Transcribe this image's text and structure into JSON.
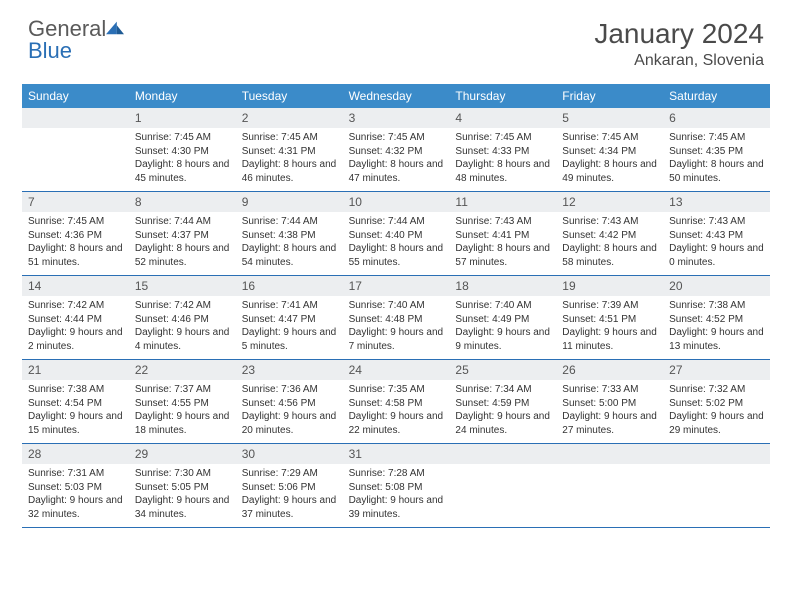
{
  "logo": {
    "word1": "General",
    "word2": "Blue"
  },
  "title": "January 2024",
  "location": "Ankaran, Slovenia",
  "colors": {
    "header_bar": "#3b8bc9",
    "week_border": "#2a6fb5",
    "daynum_bg": "#eceef0",
    "text": "#333333",
    "logo_gray": "#5a5a5a",
    "logo_blue": "#2a6fb5"
  },
  "day_names": [
    "Sunday",
    "Monday",
    "Tuesday",
    "Wednesday",
    "Thursday",
    "Friday",
    "Saturday"
  ],
  "weeks": [
    [
      {
        "n": "",
        "sunrise": "",
        "sunset": "",
        "daylight": ""
      },
      {
        "n": "1",
        "sunrise": "Sunrise: 7:45 AM",
        "sunset": "Sunset: 4:30 PM",
        "daylight": "Daylight: 8 hours and 45 minutes."
      },
      {
        "n": "2",
        "sunrise": "Sunrise: 7:45 AM",
        "sunset": "Sunset: 4:31 PM",
        "daylight": "Daylight: 8 hours and 46 minutes."
      },
      {
        "n": "3",
        "sunrise": "Sunrise: 7:45 AM",
        "sunset": "Sunset: 4:32 PM",
        "daylight": "Daylight: 8 hours and 47 minutes."
      },
      {
        "n": "4",
        "sunrise": "Sunrise: 7:45 AM",
        "sunset": "Sunset: 4:33 PM",
        "daylight": "Daylight: 8 hours and 48 minutes."
      },
      {
        "n": "5",
        "sunrise": "Sunrise: 7:45 AM",
        "sunset": "Sunset: 4:34 PM",
        "daylight": "Daylight: 8 hours and 49 minutes."
      },
      {
        "n": "6",
        "sunrise": "Sunrise: 7:45 AM",
        "sunset": "Sunset: 4:35 PM",
        "daylight": "Daylight: 8 hours and 50 minutes."
      }
    ],
    [
      {
        "n": "7",
        "sunrise": "Sunrise: 7:45 AM",
        "sunset": "Sunset: 4:36 PM",
        "daylight": "Daylight: 8 hours and 51 minutes."
      },
      {
        "n": "8",
        "sunrise": "Sunrise: 7:44 AM",
        "sunset": "Sunset: 4:37 PM",
        "daylight": "Daylight: 8 hours and 52 minutes."
      },
      {
        "n": "9",
        "sunrise": "Sunrise: 7:44 AM",
        "sunset": "Sunset: 4:38 PM",
        "daylight": "Daylight: 8 hours and 54 minutes."
      },
      {
        "n": "10",
        "sunrise": "Sunrise: 7:44 AM",
        "sunset": "Sunset: 4:40 PM",
        "daylight": "Daylight: 8 hours and 55 minutes."
      },
      {
        "n": "11",
        "sunrise": "Sunrise: 7:43 AM",
        "sunset": "Sunset: 4:41 PM",
        "daylight": "Daylight: 8 hours and 57 minutes."
      },
      {
        "n": "12",
        "sunrise": "Sunrise: 7:43 AM",
        "sunset": "Sunset: 4:42 PM",
        "daylight": "Daylight: 8 hours and 58 minutes."
      },
      {
        "n": "13",
        "sunrise": "Sunrise: 7:43 AM",
        "sunset": "Sunset: 4:43 PM",
        "daylight": "Daylight: 9 hours and 0 minutes."
      }
    ],
    [
      {
        "n": "14",
        "sunrise": "Sunrise: 7:42 AM",
        "sunset": "Sunset: 4:44 PM",
        "daylight": "Daylight: 9 hours and 2 minutes."
      },
      {
        "n": "15",
        "sunrise": "Sunrise: 7:42 AM",
        "sunset": "Sunset: 4:46 PM",
        "daylight": "Daylight: 9 hours and 4 minutes."
      },
      {
        "n": "16",
        "sunrise": "Sunrise: 7:41 AM",
        "sunset": "Sunset: 4:47 PM",
        "daylight": "Daylight: 9 hours and 5 minutes."
      },
      {
        "n": "17",
        "sunrise": "Sunrise: 7:40 AM",
        "sunset": "Sunset: 4:48 PM",
        "daylight": "Daylight: 9 hours and 7 minutes."
      },
      {
        "n": "18",
        "sunrise": "Sunrise: 7:40 AM",
        "sunset": "Sunset: 4:49 PM",
        "daylight": "Daylight: 9 hours and 9 minutes."
      },
      {
        "n": "19",
        "sunrise": "Sunrise: 7:39 AM",
        "sunset": "Sunset: 4:51 PM",
        "daylight": "Daylight: 9 hours and 11 minutes."
      },
      {
        "n": "20",
        "sunrise": "Sunrise: 7:38 AM",
        "sunset": "Sunset: 4:52 PM",
        "daylight": "Daylight: 9 hours and 13 minutes."
      }
    ],
    [
      {
        "n": "21",
        "sunrise": "Sunrise: 7:38 AM",
        "sunset": "Sunset: 4:54 PM",
        "daylight": "Daylight: 9 hours and 15 minutes."
      },
      {
        "n": "22",
        "sunrise": "Sunrise: 7:37 AM",
        "sunset": "Sunset: 4:55 PM",
        "daylight": "Daylight: 9 hours and 18 minutes."
      },
      {
        "n": "23",
        "sunrise": "Sunrise: 7:36 AM",
        "sunset": "Sunset: 4:56 PM",
        "daylight": "Daylight: 9 hours and 20 minutes."
      },
      {
        "n": "24",
        "sunrise": "Sunrise: 7:35 AM",
        "sunset": "Sunset: 4:58 PM",
        "daylight": "Daylight: 9 hours and 22 minutes."
      },
      {
        "n": "25",
        "sunrise": "Sunrise: 7:34 AM",
        "sunset": "Sunset: 4:59 PM",
        "daylight": "Daylight: 9 hours and 24 minutes."
      },
      {
        "n": "26",
        "sunrise": "Sunrise: 7:33 AM",
        "sunset": "Sunset: 5:00 PM",
        "daylight": "Daylight: 9 hours and 27 minutes."
      },
      {
        "n": "27",
        "sunrise": "Sunrise: 7:32 AM",
        "sunset": "Sunset: 5:02 PM",
        "daylight": "Daylight: 9 hours and 29 minutes."
      }
    ],
    [
      {
        "n": "28",
        "sunrise": "Sunrise: 7:31 AM",
        "sunset": "Sunset: 5:03 PM",
        "daylight": "Daylight: 9 hours and 32 minutes."
      },
      {
        "n": "29",
        "sunrise": "Sunrise: 7:30 AM",
        "sunset": "Sunset: 5:05 PM",
        "daylight": "Daylight: 9 hours and 34 minutes."
      },
      {
        "n": "30",
        "sunrise": "Sunrise: 7:29 AM",
        "sunset": "Sunset: 5:06 PM",
        "daylight": "Daylight: 9 hours and 37 minutes."
      },
      {
        "n": "31",
        "sunrise": "Sunrise: 7:28 AM",
        "sunset": "Sunset: 5:08 PM",
        "daylight": "Daylight: 9 hours and 39 minutes."
      },
      {
        "n": "",
        "sunrise": "",
        "sunset": "",
        "daylight": ""
      },
      {
        "n": "",
        "sunrise": "",
        "sunset": "",
        "daylight": ""
      },
      {
        "n": "",
        "sunrise": "",
        "sunset": "",
        "daylight": ""
      }
    ]
  ]
}
